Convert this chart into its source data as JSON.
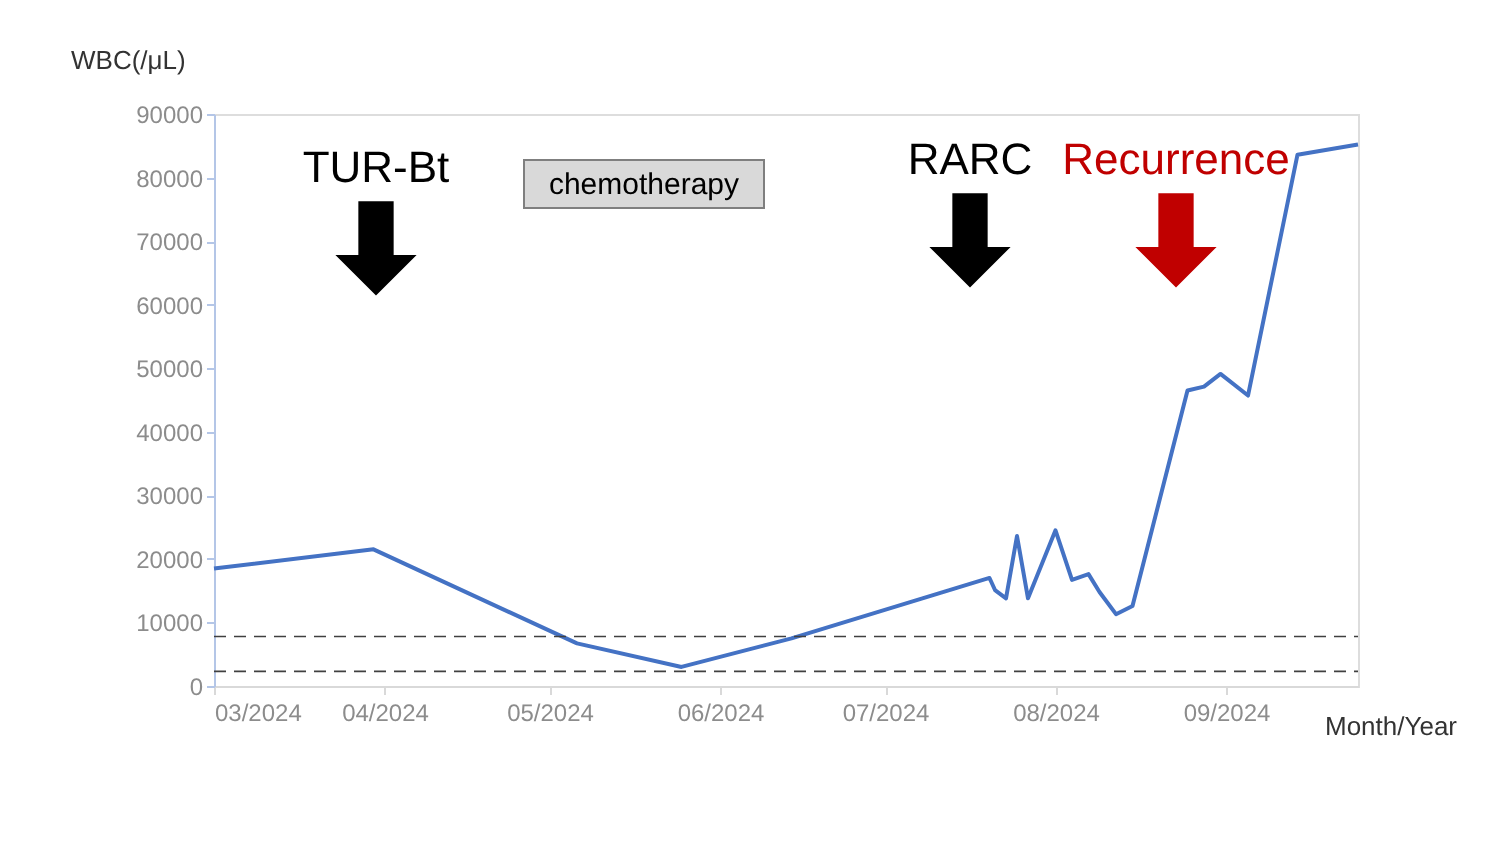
{
  "chart_data": {
    "type": "line",
    "ylabel": "WBC(/μL)",
    "xlabel": "Month/Year",
    "x": [
      "2024-03-01",
      "2024-03-30",
      "2024-05-06",
      "2024-05-25",
      "2024-06-14",
      "2024-07-20",
      "2024-07-21",
      "2024-07-23",
      "2024-07-25",
      "2024-07-27",
      "2024-08-01",
      "2024-08-04",
      "2024-08-07",
      "2024-08-09",
      "2024-08-12",
      "2024-08-15",
      "2024-08-25",
      "2024-08-28",
      "2024-08-31",
      "2024-09-05",
      "2024-09-14",
      "2024-09-25"
    ],
    "series": [
      {
        "color": "#4472c4",
        "values": [
          18500,
          21500,
          6700,
          3000,
          7500,
          17000,
          15100,
          13800,
          23600,
          13800,
          24500,
          16700,
          17600,
          14800,
          11300,
          12600,
          46500,
          47100,
          49100,
          45700,
          83600,
          85200
        ]
      }
    ],
    "xlim": [
      "2024-03-01",
      "2024-09-25"
    ],
    "xticks": [
      {
        "value": "2024-03",
        "label": "03/2024"
      },
      {
        "value": "2024-04",
        "label": "04/2024"
      },
      {
        "value": "2024-05",
        "label": "05/2024"
      },
      {
        "value": "2024-06",
        "label": "06/2024"
      },
      {
        "value": "2024-07",
        "label": "07/2024"
      },
      {
        "value": "2024-08",
        "label": "08/2024"
      },
      {
        "value": "2024-09",
        "label": "09/2024"
      }
    ],
    "ylim": [
      0,
      90000
    ],
    "yticks": [
      0,
      10000,
      20000,
      30000,
      40000,
      50000,
      60000,
      70000,
      80000,
      90000
    ],
    "grid": false,
    "line_style": "solid",
    "ref_lines": [
      {
        "axis": "y",
        "value": 2300,
        "color": "#404040",
        "line_style": "dashed"
      },
      {
        "axis": "y",
        "value": 7800,
        "color": "#404040",
        "line_style": "dashed"
      }
    ],
    "annotations": [
      "TUR-Bt",
      "chemotherapy",
      "RARC",
      "Recurrence"
    ]
  }
}
